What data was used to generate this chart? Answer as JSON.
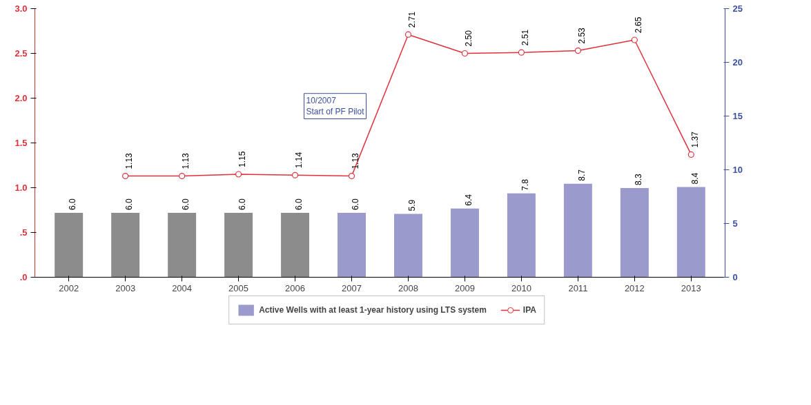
{
  "chart_data": {
    "type": "bar",
    "categories": [
      "2002",
      "2003",
      "2004",
      "2005",
      "2006",
      "2007",
      "2008",
      "2009",
      "2010",
      "2011",
      "2012",
      "2013"
    ],
    "series": [
      {
        "name": "Active Wells with at least 1-year history using LTS system",
        "axis": "y2",
        "color": "#9a9acc",
        "colors": [
          "#8c8c8c",
          "#8c8c8c",
          "#8c8c8c",
          "#8c8c8c",
          "#8c8c8c",
          "#9a9acc",
          "#9a9acc",
          "#9a9acc",
          "#9a9acc",
          "#9a9acc",
          "#9a9acc",
          "#9a9acc"
        ],
        "values": [
          6.0,
          6.0,
          6.0,
          6.0,
          6.0,
          6.0,
          5.9,
          6.4,
          7.8,
          8.7,
          8.3,
          8.4
        ],
        "value_labels": [
          "6.0",
          "6.0",
          "6.0",
          "6.0",
          "6.0",
          "6.0",
          "5.9",
          "6.4",
          "7.8",
          "8.7",
          "8.3",
          "8.4"
        ]
      },
      {
        "name": "IPA",
        "type": "line",
        "color": "#e0303c",
        "marker": "circle",
        "values": [
          null,
          1.13,
          1.13,
          1.15,
          1.14,
          1.13,
          2.71,
          2.5,
          2.51,
          2.53,
          2.65,
          1.37
        ],
        "value_labels": [
          null,
          "1.13",
          "1.13",
          "1.15",
          "1.14",
          "1.13",
          "2.71",
          "2.50",
          "2.51",
          "2.53",
          "2.65",
          "1.37"
        ]
      }
    ],
    "ylim": [
      0,
      3.0
    ],
    "yticks": [
      {
        "value": 0,
        "label": ".0"
      },
      {
        "value": 0.5,
        "label": ".5"
      },
      {
        "value": 1.0,
        "label": "1.0"
      },
      {
        "value": 1.5,
        "label": "1.5"
      },
      {
        "value": 2.0,
        "label": "2.0"
      },
      {
        "value": 2.5,
        "label": "2.5"
      },
      {
        "value": 3.0,
        "label": "3.0"
      }
    ],
    "y2lim": [
      0,
      25
    ],
    "y2ticks": [
      0,
      5,
      10,
      15,
      20,
      25
    ],
    "annotations": [
      "10/2007\nStart of PF Pilot"
    ],
    "grid": false,
    "legend": "bottom"
  }
}
